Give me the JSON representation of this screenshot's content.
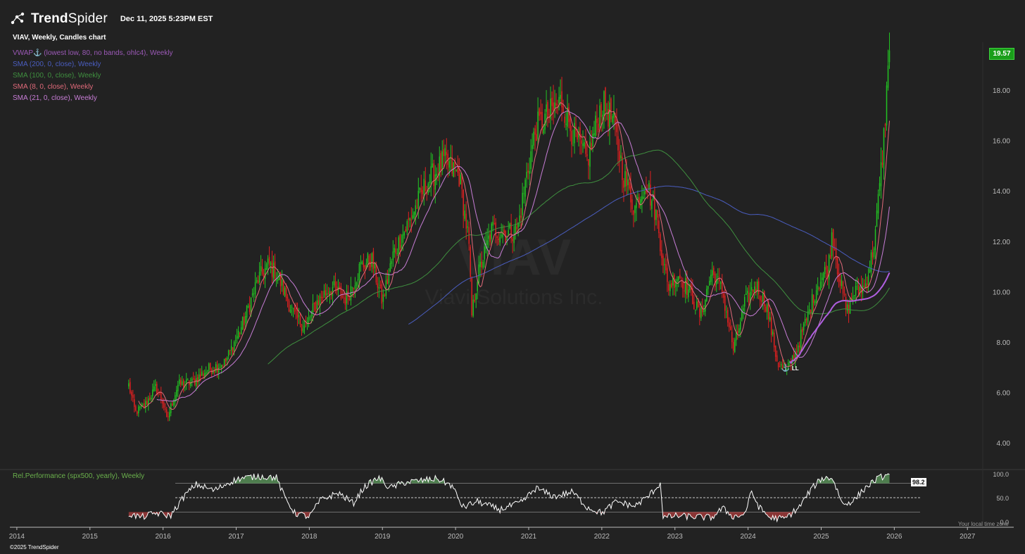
{
  "header": {
    "brand_bold": "Trend",
    "brand_light": "Spider",
    "timestamp": "Dec 11, 2025 5:23PM EST"
  },
  "chart_title": "VIAV, Weekly, Candles chart",
  "legend": [
    {
      "text": "VWAP⚓ (lowest low, 80, no bands, ohlc4), Weekly",
      "color": "#9b59b6"
    },
    {
      "text": "SMA (200, 0, close), Weekly",
      "color": "#4a5dbf"
    },
    {
      "text": "SMA (100, 0, close), Weekly",
      "color": "#3f8f3f"
    },
    {
      "text": "SMA (8, 0, close), Weekly",
      "color": "#e06a7a"
    },
    {
      "text": "SMA (21, 0, close), Weekly",
      "color": "#c77dd6"
    }
  ],
  "watermark": {
    "symbol": "VIAV",
    "name": "Viavi Solutions Inc."
  },
  "last_price": "19.57",
  "anchor_label": "LL",
  "sub_panel": {
    "legend": "Rel.Performance (spx500, yearly), Weekly",
    "value_label": "98.2",
    "ticks": [
      "100.0",
      "50.0",
      "0.0"
    ]
  },
  "local_time": "Your local time zone",
  "copyright": "©2025 TrendSpider",
  "colors": {
    "background": "#222222",
    "up_candle": "#22c322",
    "down_candle": "#e02020",
    "sma8": "#e06a7a",
    "sma21": "#c77dd6",
    "sma100": "#3f8f3f",
    "sma200": "#4a5dbf",
    "vwap": "#b05fe0",
    "relperf_line": "#ffffff",
    "relperf_high_fill": "#4e7d4e",
    "relperf_low_fill": "#8a3535",
    "last_price_box": "#1a9e1a"
  },
  "chart_data": {
    "type": "candlestick",
    "symbol": "VIAV",
    "timeframe": "Weekly",
    "y_ticks": [
      "4.00",
      "6.00",
      "8.00",
      "10.00",
      "12.00",
      "14.00",
      "16.00",
      "18.00"
    ],
    "ylim": [
      3.0,
      19.9
    ],
    "x_ticks": [
      "2014",
      "2015",
      "2016",
      "2017",
      "2018",
      "2019",
      "2020",
      "2021",
      "2022",
      "2023",
      "2024",
      "2025",
      "2026",
      "2027"
    ],
    "xlim": [
      2013.77,
      2027.2
    ],
    "data_start": 2015.53,
    "data_end": 2025.95,
    "price_path": [
      [
        2015.53,
        6.3
      ],
      [
        2015.62,
        5.2
      ],
      [
        2015.75,
        5.5
      ],
      [
        2015.9,
        6.2
      ],
      [
        2016.0,
        5.6
      ],
      [
        2016.05,
        4.9
      ],
      [
        2016.2,
        6.3
      ],
      [
        2016.4,
        6.4
      ],
      [
        2016.6,
        6.9
      ],
      [
        2016.85,
        7.2
      ],
      [
        2017.1,
        8.8
      ],
      [
        2017.3,
        10.5
      ],
      [
        2017.45,
        11.1
      ],
      [
        2017.6,
        10.4
      ],
      [
        2017.8,
        9.0
      ],
      [
        2017.95,
        8.6
      ],
      [
        2018.1,
        9.6
      ],
      [
        2018.3,
        10.2
      ],
      [
        2018.5,
        9.7
      ],
      [
        2018.7,
        11.0
      ],
      [
        2018.85,
        11.3
      ],
      [
        2019.0,
        9.6
      ],
      [
        2019.15,
        11.5
      ],
      [
        2019.4,
        13.0
      ],
      [
        2019.6,
        14.3
      ],
      [
        2019.85,
        15.2
      ],
      [
        2020.05,
        14.6
      ],
      [
        2020.18,
        12.0
      ],
      [
        2020.22,
        9.0
      ],
      [
        2020.3,
        10.6
      ],
      [
        2020.5,
        12.5
      ],
      [
        2020.7,
        12.3
      ],
      [
        2020.85,
        12.5
      ],
      [
        2020.97,
        14.6
      ],
      [
        2021.1,
        16.5
      ],
      [
        2021.3,
        17.1
      ],
      [
        2021.45,
        17.6
      ],
      [
        2021.6,
        16.3
      ],
      [
        2021.8,
        15.2
      ],
      [
        2022.0,
        17.5
      ],
      [
        2022.15,
        16.8
      ],
      [
        2022.3,
        14.6
      ],
      [
        2022.45,
        13.3
      ],
      [
        2022.6,
        14.4
      ],
      [
        2022.75,
        13.0
      ],
      [
        2022.83,
        11.4
      ],
      [
        2022.9,
        10.2
      ],
      [
        2023.05,
        10.7
      ],
      [
        2023.2,
        10.0
      ],
      [
        2023.35,
        9.0
      ],
      [
        2023.5,
        10.8
      ],
      [
        2023.65,
        10.0
      ],
      [
        2023.8,
        7.7
      ],
      [
        2023.95,
        9.5
      ],
      [
        2024.1,
        10.3
      ],
      [
        2024.25,
        9.5
      ],
      [
        2024.4,
        7.2
      ],
      [
        2024.52,
        6.8
      ],
      [
        2024.65,
        7.6
      ],
      [
        2024.8,
        8.9
      ],
      [
        2024.95,
        10.3
      ],
      [
        2025.1,
        11.0
      ],
      [
        2025.15,
        12.4
      ],
      [
        2025.25,
        10.5
      ],
      [
        2025.35,
        9.2
      ],
      [
        2025.45,
        10.0
      ],
      [
        2025.6,
        10.2
      ],
      [
        2025.7,
        11.5
      ],
      [
        2025.75,
        12.6
      ],
      [
        2025.85,
        15.8
      ],
      [
        2025.9,
        18.2
      ],
      [
        2025.95,
        19.57
      ]
    ],
    "rel_performance": {
      "ylim": [
        0,
        100
      ],
      "upper_band": 80,
      "mid_line": 50,
      "lower_band": 20,
      "last_value": 98.2,
      "path": [
        [
          2015.53,
          16
        ],
        [
          2015.7,
          9
        ],
        [
          2015.9,
          18
        ],
        [
          2016.1,
          12
        ],
        [
          2016.3,
          55
        ],
        [
          2016.45,
          78
        ],
        [
          2016.7,
          65
        ],
        [
          2016.9,
          82
        ],
        [
          2017.05,
          90
        ],
        [
          2017.3,
          95
        ],
        [
          2017.55,
          92
        ],
        [
          2017.65,
          55
        ],
        [
          2017.8,
          18
        ],
        [
          2018.0,
          10
        ],
        [
          2018.15,
          45
        ],
        [
          2018.4,
          60
        ],
        [
          2018.6,
          38
        ],
        [
          2018.75,
          72
        ],
        [
          2018.95,
          92
        ],
        [
          2019.1,
          70
        ],
        [
          2019.3,
          82
        ],
        [
          2019.5,
          85
        ],
        [
          2019.75,
          90
        ],
        [
          2019.95,
          75
        ],
        [
          2020.1,
          30
        ],
        [
          2020.3,
          42
        ],
        [
          2020.6,
          25
        ],
        [
          2020.9,
          40
        ],
        [
          2021.1,
          70
        ],
        [
          2021.35,
          52
        ],
        [
          2021.6,
          62
        ],
        [
          2021.8,
          30
        ],
        [
          2022.0,
          18
        ],
        [
          2022.2,
          42
        ],
        [
          2022.45,
          32
        ],
        [
          2022.65,
          55
        ],
        [
          2022.8,
          80
        ],
        [
          2022.84,
          8
        ],
        [
          2023.0,
          12
        ],
        [
          2023.3,
          10
        ],
        [
          2023.5,
          8
        ],
        [
          2023.65,
          28
        ],
        [
          2023.8,
          10
        ],
        [
          2023.95,
          15
        ],
        [
          2024.05,
          62
        ],
        [
          2024.15,
          30
        ],
        [
          2024.3,
          8
        ],
        [
          2024.5,
          6
        ],
        [
          2024.7,
          30
        ],
        [
          2024.85,
          65
        ],
        [
          2025.0,
          90
        ],
        [
          2025.15,
          92
        ],
        [
          2025.3,
          35
        ],
        [
          2025.45,
          45
        ],
        [
          2025.6,
          70
        ],
        [
          2025.75,
          88
        ],
        [
          2025.85,
          95
        ],
        [
          2025.95,
          98.2
        ]
      ]
    }
  }
}
